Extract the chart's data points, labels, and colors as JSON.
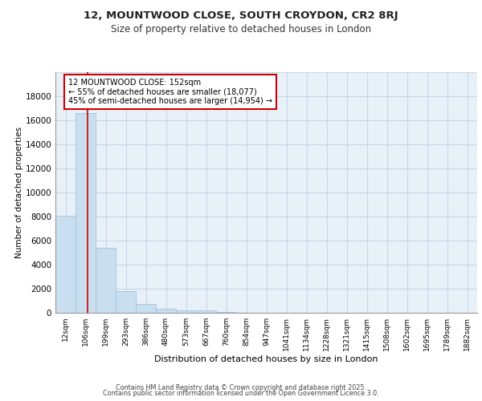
{
  "title_line1": "12, MOUNTWOOD CLOSE, SOUTH CROYDON, CR2 8RJ",
  "title_line2": "Size of property relative to detached houses in London",
  "xlabel": "Distribution of detached houses by size in London",
  "ylabel": "Number of detached properties",
  "bar_labels": [
    "12sqm",
    "106sqm",
    "199sqm",
    "293sqm",
    "386sqm",
    "480sqm",
    "573sqm",
    "667sqm",
    "760sqm",
    "854sqm",
    "947sqm",
    "1041sqm",
    "1134sqm",
    "1228sqm",
    "1321sqm",
    "1415sqm",
    "1508sqm",
    "1602sqm",
    "1695sqm",
    "1789sqm",
    "1882sqm"
  ],
  "bar_values": [
    8100,
    16600,
    5400,
    1800,
    750,
    350,
    200,
    200,
    100,
    0,
    0,
    0,
    0,
    0,
    0,
    0,
    0,
    0,
    0,
    0,
    0
  ],
  "bar_color": "#c9dff0",
  "bar_edgecolor": "#a0c4e0",
  "grid_color": "#c8d8e8",
  "bg_color": "#e8f0f8",
  "red_line_x": 1.1,
  "annotation_text": "12 MOUNTWOOD CLOSE: 152sqm\n← 55% of detached houses are smaller (18,077)\n45% of semi-detached houses are larger (14,954) →",
  "annotation_box_color": "#ffffff",
  "annotation_edge_color": "#cc0000",
  "footer_line1": "Contains HM Land Registry data © Crown copyright and database right 2025.",
  "footer_line2": "Contains public sector information licensed under the Open Government Licence 3.0.",
  "ylim": [
    0,
    20000
  ],
  "yticks": [
    0,
    2000,
    4000,
    6000,
    8000,
    10000,
    12000,
    14000,
    16000,
    18000,
    20000
  ]
}
